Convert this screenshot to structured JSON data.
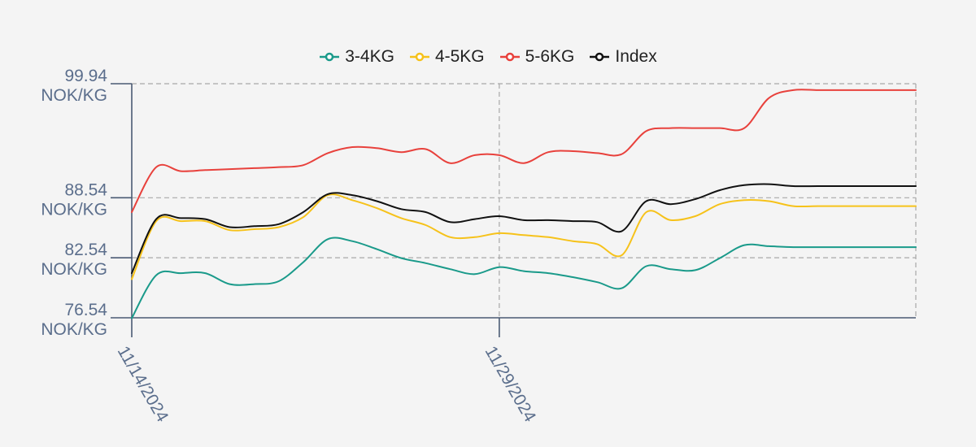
{
  "chart_data": {
    "type": "line",
    "title": "",
    "xlabel": "",
    "ylabel": "",
    "x": [
      "11/14/2024",
      "11/15/2024",
      "11/16/2024",
      "11/17/2024",
      "11/18/2024",
      "11/19/2024",
      "11/20/2024",
      "11/21/2024",
      "11/22/2024",
      "11/23/2024",
      "11/24/2024",
      "11/25/2024",
      "11/26/2024",
      "11/27/2024",
      "11/28/2024",
      "11/29/2024",
      "11/30/2024",
      "12/01/2024",
      "12/02/2024",
      "12/03/2024",
      "12/04/2024",
      "12/05/2024",
      "12/06/2024",
      "12/07/2024",
      "12/08/2024",
      "12/09/2024",
      "12/10/2024",
      "12/11/2024",
      "12/12/2024",
      "12/13/2024",
      "12/14/2024",
      "12/15/2024",
      "12/16/2024"
    ],
    "x_tick_labels": [
      "11/14/2024",
      "11/29/2024"
    ],
    "ylim": [
      76.54,
      99.94
    ],
    "y_ticks": [
      {
        "value": 99.94,
        "label": "99.94",
        "unit": "NOK/KG"
      },
      {
        "value": 88.54,
        "label": "88.54",
        "unit": "NOK/KG"
      },
      {
        "value": 82.54,
        "label": "82.54",
        "unit": "NOK/KG"
      },
      {
        "value": 76.54,
        "label": "76.54",
        "unit": "NOK/KG"
      }
    ],
    "grid": true,
    "legend_position": "top-center",
    "series": [
      {
        "name": "3-4KG",
        "color": "#1a9a8a",
        "values": [
          76.5,
          80.8,
          81.0,
          81.0,
          79.9,
          79.9,
          80.2,
          82.1,
          84.4,
          84.2,
          83.4,
          82.5,
          82.0,
          81.4,
          80.9,
          81.6,
          81.2,
          81.0,
          80.6,
          80.1,
          79.5,
          81.7,
          81.4,
          81.3,
          82.5,
          83.8,
          83.7,
          83.6,
          83.6,
          83.6,
          83.6,
          83.6,
          83.6
        ]
      },
      {
        "name": "4-5KG",
        "color": "#f6c21a",
        "values": [
          80.4,
          86.2,
          86.2,
          86.2,
          85.3,
          85.4,
          85.6,
          86.6,
          88.8,
          88.3,
          87.5,
          86.5,
          85.8,
          84.6,
          84.6,
          85.0,
          84.8,
          84.6,
          84.2,
          83.9,
          82.8,
          87.1,
          86.3,
          86.7,
          87.9,
          88.3,
          88.2,
          87.7,
          87.7,
          87.7,
          87.7,
          87.7,
          87.7
        ]
      },
      {
        "name": "5-6KG",
        "color": "#e8413c",
        "values": [
          87.1,
          91.6,
          91.2,
          91.3,
          91.4,
          91.5,
          91.6,
          91.8,
          93.0,
          93.6,
          93.5,
          93.1,
          93.4,
          92.0,
          92.8,
          92.8,
          92.0,
          93.1,
          93.2,
          93.0,
          92.9,
          95.2,
          95.5,
          95.5,
          95.5,
          95.5,
          98.5,
          99.3,
          99.3,
          99.3,
          99.3,
          99.3,
          99.3
        ]
      },
      {
        "name": "Index",
        "color": "#111111",
        "values": [
          81.0,
          86.4,
          86.5,
          86.4,
          85.6,
          85.7,
          85.9,
          87.1,
          88.9,
          88.8,
          88.2,
          87.4,
          87.1,
          86.1,
          86.4,
          86.7,
          86.3,
          86.3,
          86.2,
          86.1,
          85.2,
          88.2,
          87.9,
          88.4,
          89.3,
          89.8,
          89.9,
          89.7,
          89.7,
          89.7,
          89.7,
          89.7,
          89.7
        ]
      }
    ]
  }
}
